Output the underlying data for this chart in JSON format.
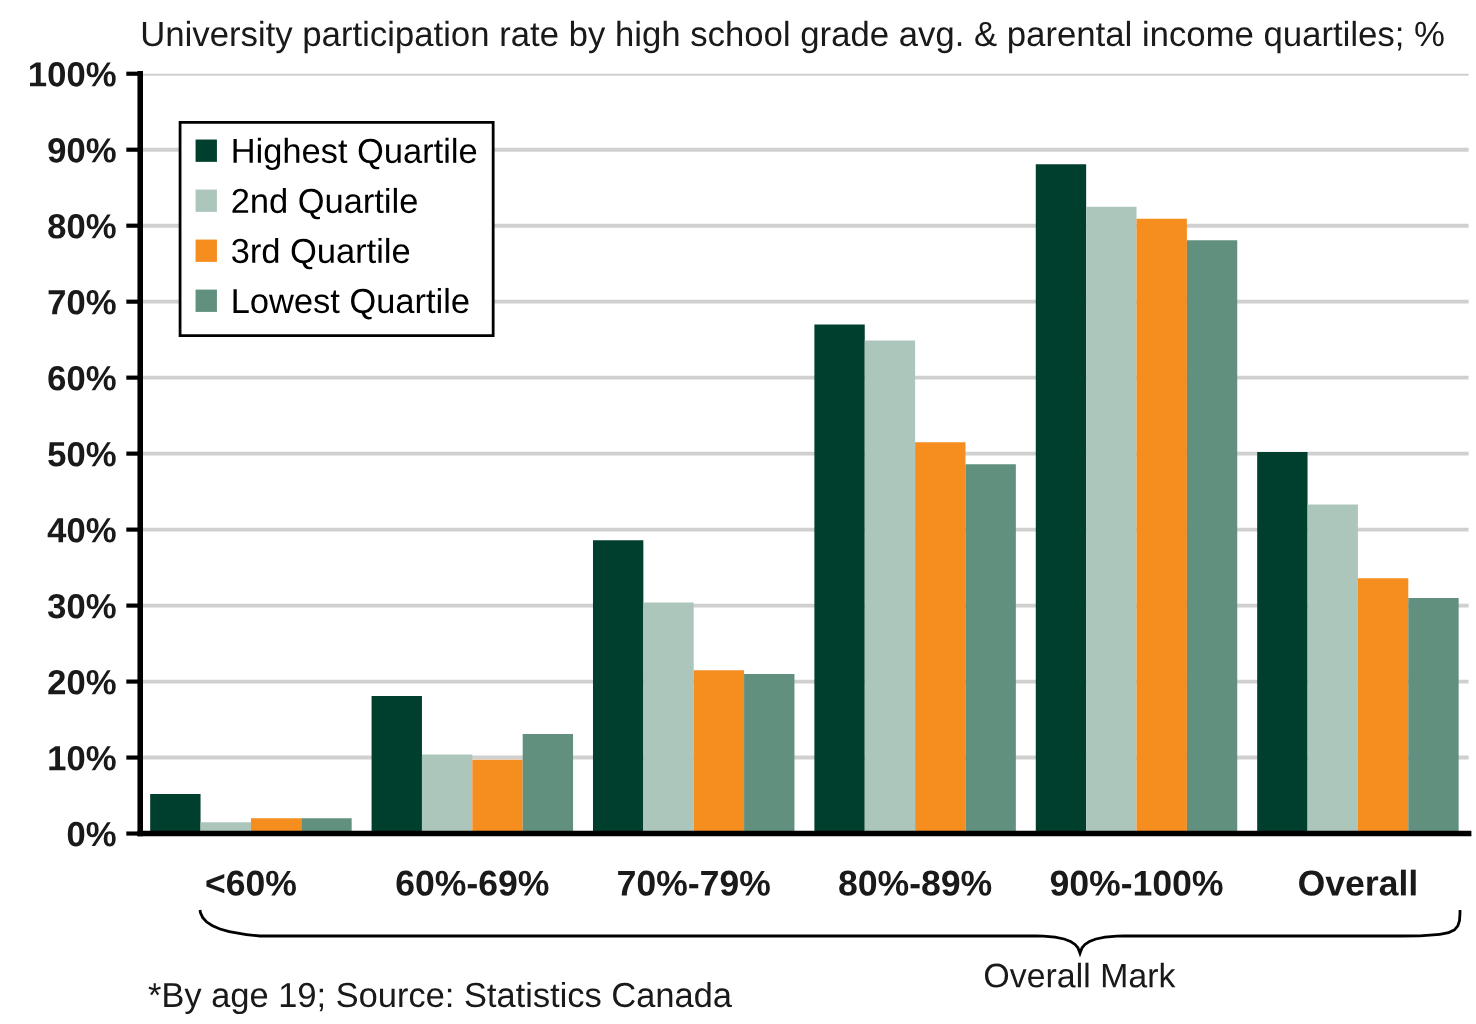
{
  "chart_data": {
    "type": "bar",
    "title": "University participation rate by high school grade avg. & parental income quartiles; %",
    "xlabel": "Overall Mark",
    "annotations": [
      "*By age 19; Source: Statistics Canada"
    ],
    "categories": [
      "<60%",
      "60%-69%",
      "70%-79%",
      "80%-89%",
      "90%-100%",
      "Overall"
    ],
    "series": [
      {
        "name": "Highest Quartile",
        "color": "#003f2d",
        "values": [
          5.2,
          18.1,
          38.6,
          67.0,
          88.1,
          50.2
        ]
      },
      {
        "name": "2nd Quartile",
        "color": "#adc6bb",
        "values": [
          1.5,
          10.4,
          30.4,
          64.9,
          82.5,
          43.3
        ]
      },
      {
        "name": "3rd Quartile",
        "color": "#f68d1f",
        "values": [
          2.0,
          9.7,
          21.5,
          51.5,
          80.9,
          33.6
        ]
      },
      {
        "name": "Lowest Quartile",
        "color": "#61907f",
        "values": [
          2.0,
          13.1,
          21.0,
          48.6,
          78.1,
          31.0
        ]
      }
    ],
    "ylim": [
      0,
      100
    ],
    "yticks": [
      {
        "value": 0,
        "label": "0%"
      },
      {
        "value": 10,
        "label": "10%"
      },
      {
        "value": 20,
        "label": "20%"
      },
      {
        "value": 30,
        "label": "30%"
      },
      {
        "value": 40,
        "label": "40%"
      },
      {
        "value": 50,
        "label": "50%"
      },
      {
        "value": 60,
        "label": "60%"
      },
      {
        "value": 70,
        "label": "70%"
      },
      {
        "value": 80,
        "label": "80%"
      },
      {
        "value": 90,
        "label": "90%"
      },
      {
        "value": 100,
        "label": "100%"
      }
    ],
    "grid": "y",
    "legend": "top left"
  }
}
